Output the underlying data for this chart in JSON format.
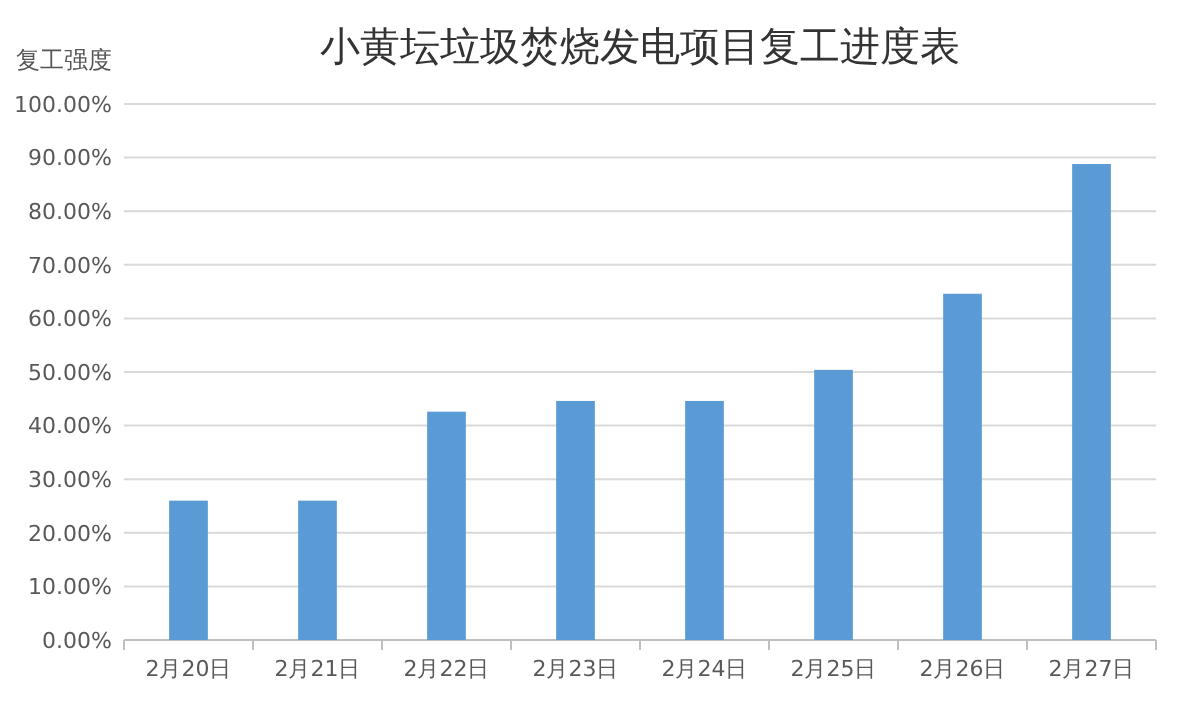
{
  "chart_data": {
    "type": "bar",
    "title": "小黄坛垃圾焚烧发电项目复工进度表",
    "ylabel": "复工强度",
    "categories": [
      "2月20日",
      "2月21日",
      "2月22日",
      "2月23日",
      "2月24日",
      "2月25日",
      "2月26日",
      "2月27日"
    ],
    "values": [
      26,
      26,
      42.6,
      44.6,
      44.6,
      50.4,
      64.6,
      88.8
    ],
    "color": "#5b9bd5",
    "ylim": [
      0,
      100
    ],
    "yticks": [
      {
        "value": 0,
        "label": "0.00%"
      },
      {
        "value": 10,
        "label": "10.00%"
      },
      {
        "value": 20,
        "label": "20.00%"
      },
      {
        "value": 30,
        "label": "30.00%"
      },
      {
        "value": 40,
        "label": "40.00%"
      },
      {
        "value": 50,
        "label": "50.00%"
      },
      {
        "value": 60,
        "label": "60.00%"
      },
      {
        "value": 70,
        "label": "70.00%"
      },
      {
        "value": 80,
        "label": "80.00%"
      },
      {
        "value": 90,
        "label": "90.00%"
      },
      {
        "value": 100,
        "label": "100.00%"
      }
    ],
    "grid": "y"
  }
}
